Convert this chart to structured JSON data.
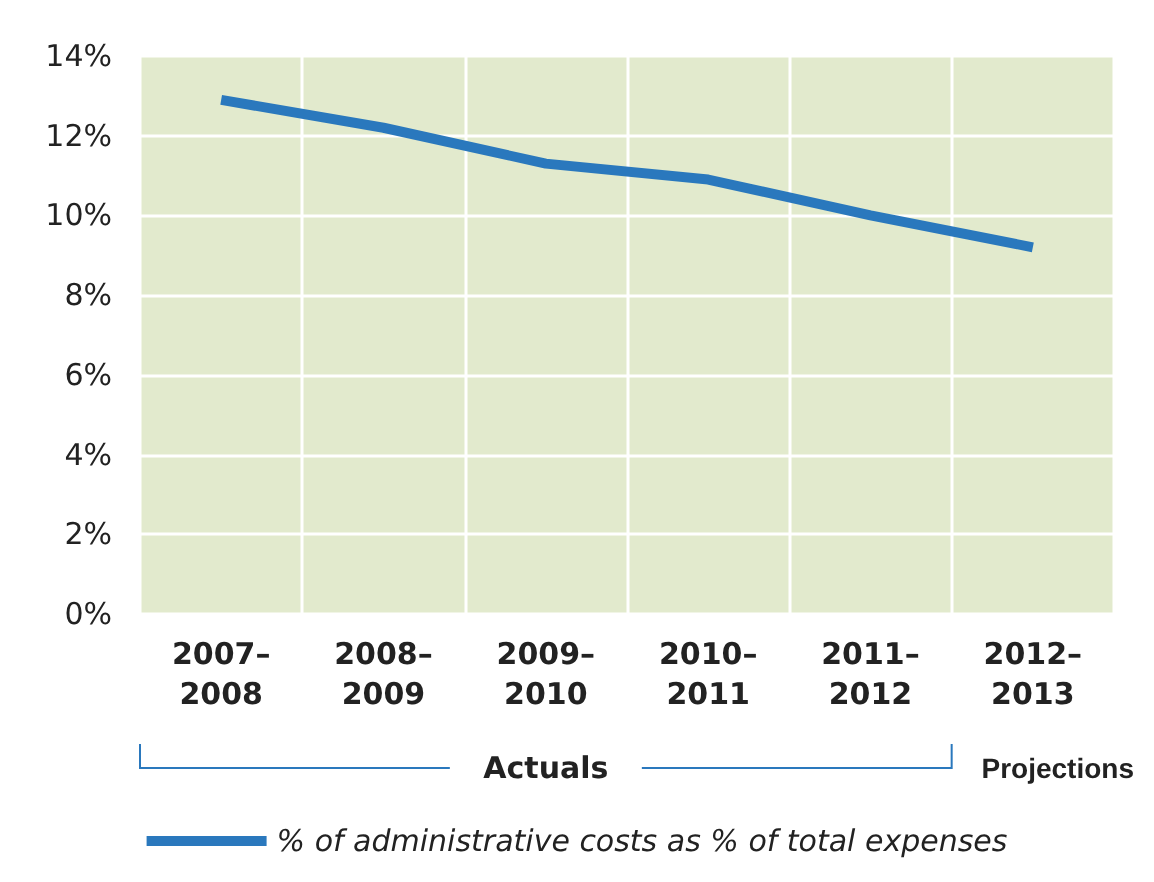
{
  "chart_data": {
    "type": "line",
    "categories": [
      "2007–\n2008",
      "2008–\n2009",
      "2009–\n2010",
      "2010–\n2011",
      "2011–\n2012",
      "2012–\n2013"
    ],
    "series": [
      {
        "name": "% of administrative costs as % of total expenses",
        "color": "#2a78bd",
        "values": [
          12.9,
          12.2,
          11.3,
          10.9,
          10.0,
          9.2
        ]
      }
    ],
    "ylim": [
      0,
      14
    ],
    "yticks": [
      {
        "value": 0,
        "label": "0%"
      },
      {
        "value": 2,
        "label": "2%"
      },
      {
        "value": 4,
        "label": "4%"
      },
      {
        "value": 6,
        "label": "6%"
      },
      {
        "value": 8,
        "label": "8%"
      },
      {
        "value": 10,
        "label": "10%"
      },
      {
        "value": 12,
        "label": "12%"
      },
      {
        "value": 14,
        "label": "14%"
      }
    ],
    "grid": true,
    "legend": "bottom",
    "marker": "none",
    "line_style": "solid",
    "annotations": [
      "Actuals",
      "Projections"
    ]
  }
}
